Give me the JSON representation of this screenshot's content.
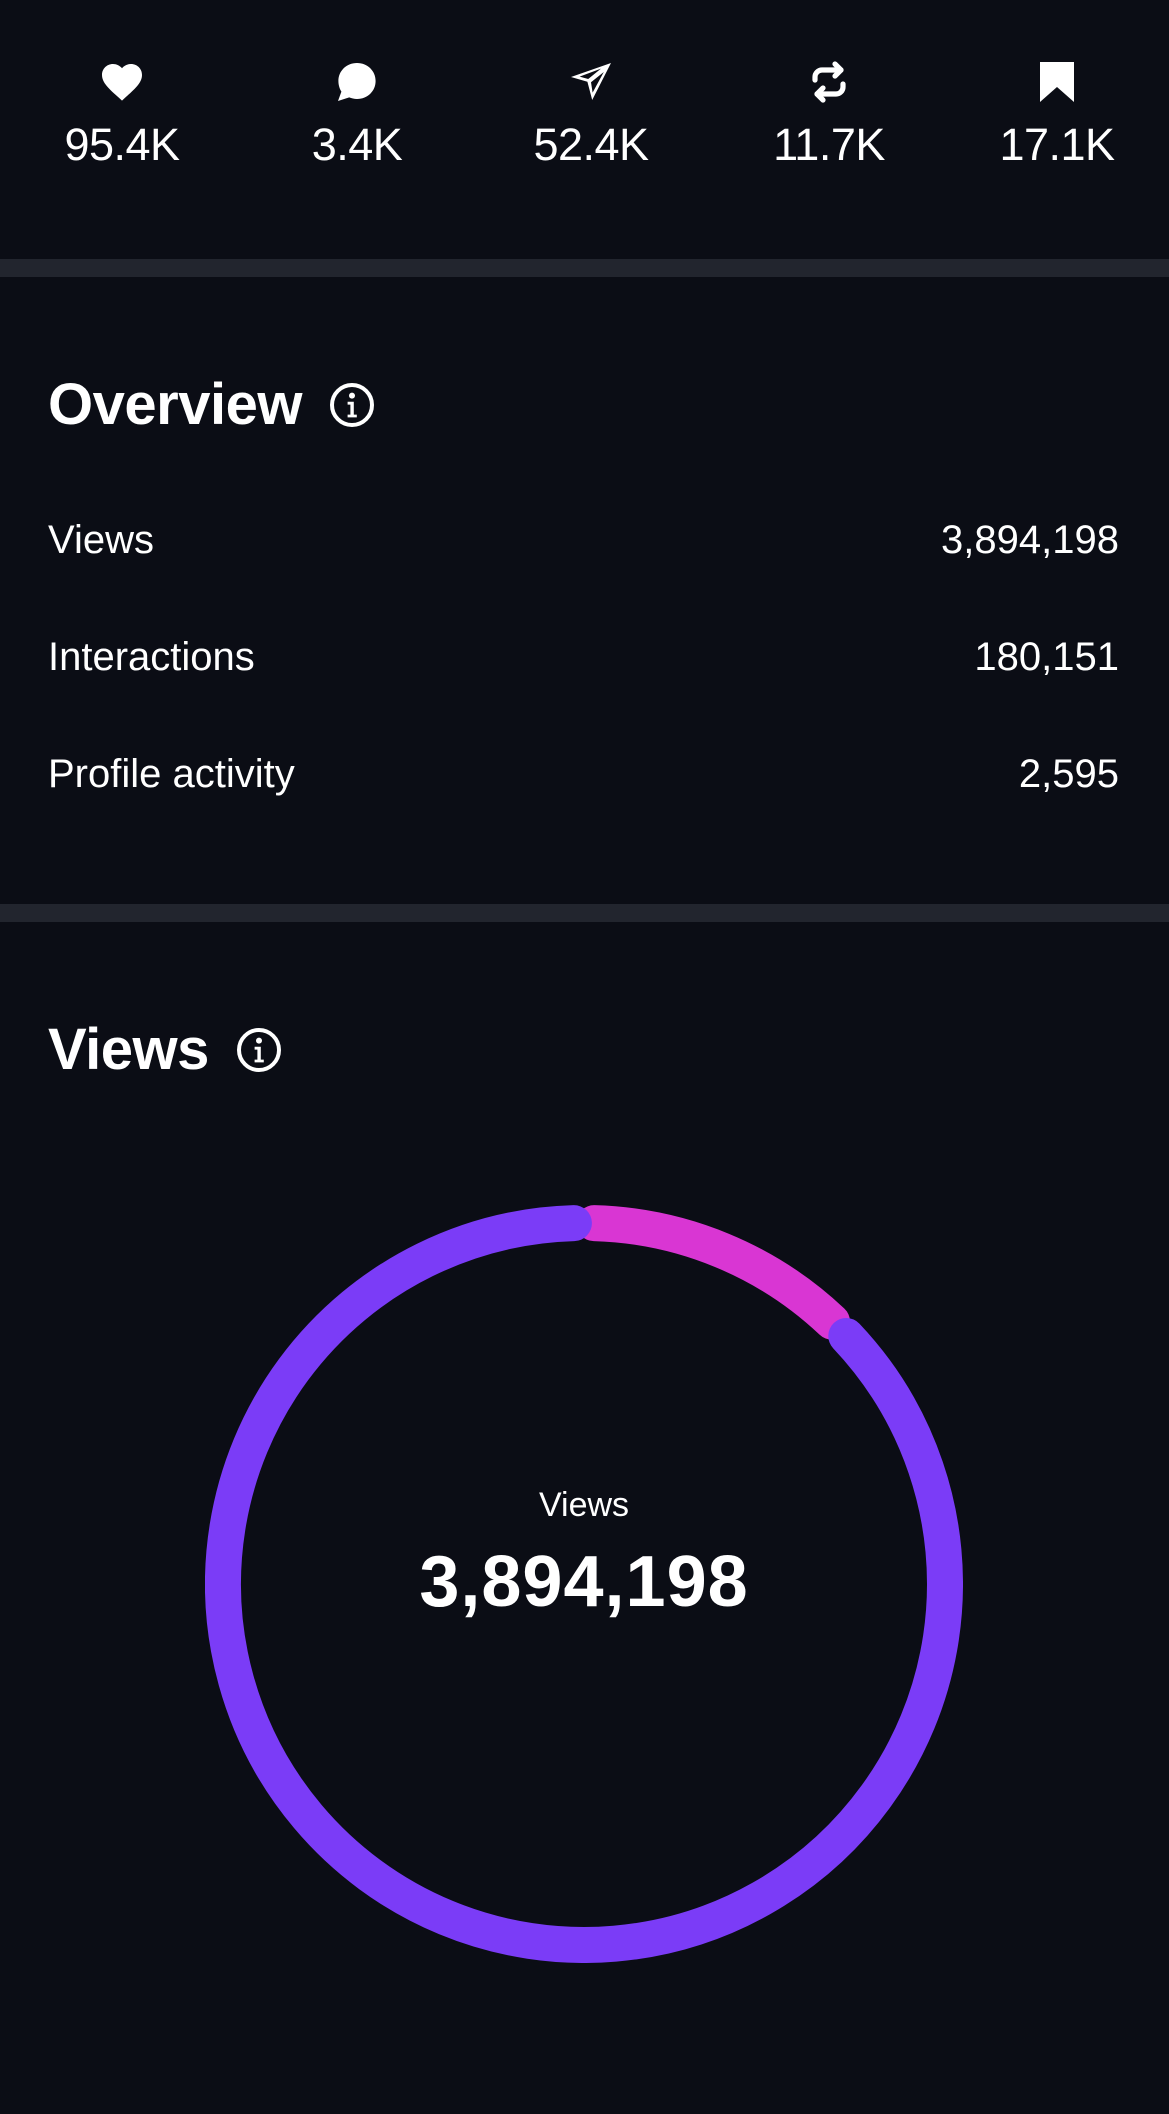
{
  "engagement": [
    {
      "icon": "heart-icon",
      "value": "95.4K"
    },
    {
      "icon": "comment-icon",
      "value": "3.4K"
    },
    {
      "icon": "share-icon",
      "value": "52.4K"
    },
    {
      "icon": "repost-icon",
      "value": "11.7K"
    },
    {
      "icon": "bookmark-icon",
      "value": "17.1K"
    }
  ],
  "overview": {
    "title": "Overview",
    "rows": [
      {
        "label": "Views",
        "value": "3,894,198"
      },
      {
        "label": "Interactions",
        "value": "180,151"
      },
      {
        "label": "Profile activity",
        "value": "2,595"
      }
    ]
  },
  "views": {
    "title": "Views",
    "center_label": "Views",
    "center_value": "3,894,198"
  },
  "chart_data": {
    "type": "pie",
    "variant": "donut",
    "values": [
      0.125,
      0.875
    ],
    "colors": [
      "#d936d3",
      "#7b3cf7"
    ]
  },
  "colors": {
    "background": "#0b0d15",
    "divider": "#22252e",
    "text": "#ffffff",
    "segment_magenta": "#d936d3",
    "segment_purple": "#7b3cf7"
  }
}
